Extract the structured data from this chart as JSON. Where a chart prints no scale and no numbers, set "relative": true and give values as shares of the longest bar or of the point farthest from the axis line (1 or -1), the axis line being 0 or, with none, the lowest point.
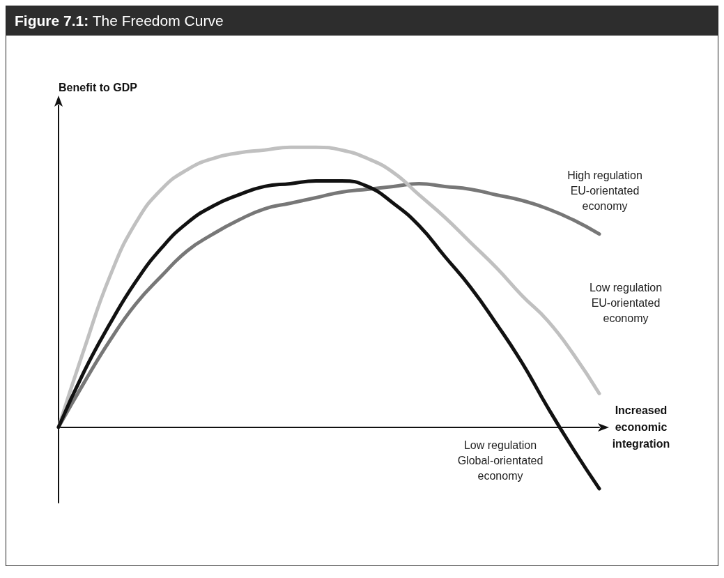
{
  "chart_data": {
    "type": "line",
    "title": "Figure 7.1: The Freedom Curve",
    "xlabel": "Increased\neconomic\nintegration",
    "ylabel": "Benefit to GDP",
    "relative": true,
    "grid": false,
    "legend": false,
    "marker": "none",
    "line_style": "solid",
    "categories": [
      null,
      null,
      null,
      null,
      null,
      null,
      null,
      null,
      null,
      null,
      null,
      null,
      null,
      null,
      null,
      null,
      null,
      null,
      null,
      null,
      null,
      null
    ],
    "series": [
      {
        "name": "High regulation\nEU-orientated\neconomy",
        "color": "#777777",
        "values": [
          0,
          0.16,
          0.31,
          0.44,
          0.54,
          0.63,
          0.69,
          0.74,
          0.78,
          0.8,
          0.82,
          0.84,
          0.85,
          0.86,
          0.87,
          0.86,
          0.85,
          0.83,
          0.81,
          0.78,
          0.74,
          0.69
        ]
      },
      {
        "name": "Low regulation\nEU-orientated\neconomy",
        "color": "#c0c0c0",
        "values": [
          0,
          0.28,
          0.54,
          0.73,
          0.85,
          0.92,
          0.96,
          0.98,
          0.99,
          1,
          1,
          0.99,
          0.96,
          0.91,
          0.83,
          0.75,
          0.66,
          0.57,
          0.47,
          0.38,
          0.26,
          0.12
        ]
      },
      {
        "name": "Low regulation\nGlobal-orientated\neconomy",
        "color": "#111111",
        "values": [
          0,
          0.2,
          0.37,
          0.52,
          0.64,
          0.73,
          0.79,
          0.83,
          0.86,
          0.87,
          0.88,
          0.88,
          0.86,
          0.8,
          0.72,
          0.61,
          0.5,
          0.37,
          0.23,
          0.07,
          -0.08,
          -0.22
        ]
      }
    ]
  }
}
